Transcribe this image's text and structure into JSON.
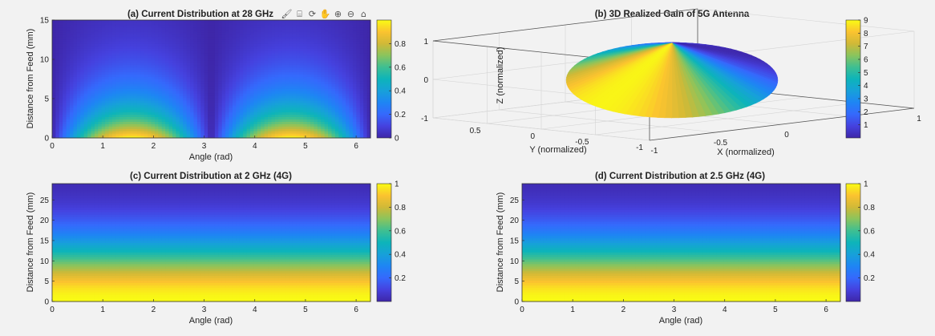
{
  "toolbar": {
    "icons": [
      "brush-icon",
      "data-tips-icon",
      "rotate-3d-icon",
      "pan-hand-icon",
      "zoom-in-icon",
      "zoom-out-icon",
      "home-icon"
    ]
  },
  "chart_data": [
    {
      "id": "a",
      "type": "heatmap",
      "title": "(a) Current Distribution at 28 GHz",
      "xlabel": "Angle (rad)",
      "ylabel": "Distance from Feed (mm)",
      "xlim": [
        0,
        6.2832
      ],
      "ylim": [
        0,
        15
      ],
      "xticks": [
        0,
        1,
        2,
        3,
        4,
        5,
        6
      ],
      "yticks": [
        0,
        5,
        10,
        15
      ],
      "colormap": "parula",
      "clim": [
        0,
        1
      ],
      "colorbar_ticks": [
        "0",
        "0.2",
        "0.4",
        "0.6",
        "0.8"
      ],
      "colorbar_values": [
        0,
        0.2,
        0.4,
        0.6,
        0.8
      ],
      "function": "|sin(angle)| * exp(-distance/5)"
    },
    {
      "id": "b",
      "type": "surface3d",
      "title": "(b) 3D Realized Gain of 5G Antenna",
      "xlabel": "X (normalized)",
      "ylabel": "Y (normalized)",
      "zlabel": "Z (normalized)",
      "xlim": [
        -1,
        1
      ],
      "ylim": [
        -1,
        1
      ],
      "zlim": [
        -1,
        1
      ],
      "xticks": [
        "-1",
        "-0.5",
        "0",
        "0.5",
        "1"
      ],
      "yticks": [
        "-1",
        "-0.5",
        "0",
        "0.5"
      ],
      "zticks": [
        "-1",
        "0",
        "1"
      ],
      "colormap": "parula",
      "clim": [
        0,
        9
      ],
      "colorbar_ticks": [
        "1",
        "2",
        "3",
        "4",
        "5",
        "6",
        "7",
        "8",
        "9"
      ],
      "colorbar_values": [
        1,
        2,
        3,
        4,
        5,
        6,
        7,
        8,
        9
      ],
      "grid": true
    },
    {
      "id": "c",
      "type": "heatmap",
      "title": "(c) Current Distribution at 2 GHz (4G)",
      "xlabel": "Angle (rad)",
      "ylabel": "Distance from Feed (mm)",
      "xlim": [
        0,
        6.2832
      ],
      "ylim": [
        0,
        29
      ],
      "xticks": [
        0,
        1,
        2,
        3,
        4,
        5,
        6
      ],
      "yticks": [
        0,
        5,
        10,
        15,
        20,
        25
      ],
      "colormap": "parula",
      "clim": [
        0,
        1
      ],
      "colorbar_ticks": [
        "0.2",
        "0.4",
        "0.6",
        "0.8",
        "1"
      ],
      "colorbar_values": [
        0.2,
        0.4,
        0.6,
        0.8,
        1
      ],
      "function": "exp(-(distance/15)^2)"
    },
    {
      "id": "d",
      "type": "heatmap",
      "title": "(d) Current Distribution at 2.5 GHz (4G)",
      "xlabel": "Angle (rad)",
      "ylabel": "Distance from Feed (mm)",
      "xlim": [
        0,
        6.2832
      ],
      "ylim": [
        0,
        29
      ],
      "xticks": [
        0,
        1,
        2,
        3,
        4,
        5,
        6
      ],
      "yticks": [
        0,
        5,
        10,
        15,
        20,
        25
      ],
      "colormap": "parula",
      "clim": [
        0,
        1
      ],
      "colorbar_ticks": [
        "0.2",
        "0.4",
        "0.6",
        "0.8",
        "1"
      ],
      "colorbar_values": [
        0.2,
        0.4,
        0.6,
        0.8,
        1
      ],
      "function": "exp(-(distance/15)^2)"
    }
  ]
}
